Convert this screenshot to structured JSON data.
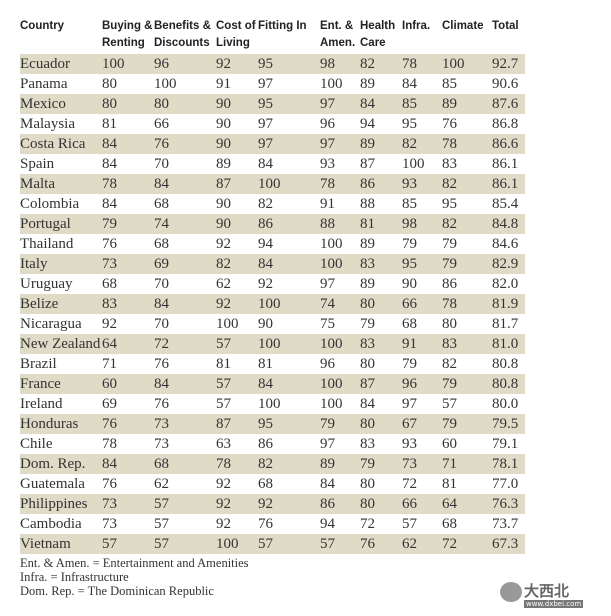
{
  "headers": [
    "Country",
    "Buying &\nRenting",
    "Benefits &\nDiscounts",
    "Cost of\nLiving",
    "Fitting In",
    "Ent. &\nAmen.",
    "Health\nCare",
    "Infra.",
    "Climate",
    "Total"
  ],
  "rows": [
    [
      "Ecuador",
      "100",
      "96",
      "92",
      "95",
      "98",
      "82",
      "78",
      "100",
      "92.7"
    ],
    [
      "Panama",
      "80",
      "100",
      "91",
      "97",
      "100",
      "89",
      "84",
      "85",
      "90.6"
    ],
    [
      "Mexico",
      "80",
      "80",
      "90",
      "95",
      "97",
      "84",
      "85",
      "89",
      "87.6"
    ],
    [
      "Malaysia",
      "81",
      "66",
      "90",
      "97",
      "96",
      "94",
      "95",
      "76",
      "86.8"
    ],
    [
      "Costa Rica",
      "84",
      "76",
      "90",
      "97",
      "97",
      "89",
      "82",
      "78",
      "86.6"
    ],
    [
      "Spain",
      "84",
      "70",
      "89",
      "84",
      "93",
      "87",
      "100",
      "83",
      "86.1"
    ],
    [
      "Malta",
      "78",
      "84",
      "87",
      "100",
      "78",
      "86",
      "93",
      "82",
      "86.1"
    ],
    [
      "Colombia",
      "84",
      "68",
      "90",
      "82",
      "91",
      "88",
      "85",
      "95",
      "85.4"
    ],
    [
      "Portugal",
      "79",
      "74",
      "90",
      "86",
      "88",
      "81",
      "98",
      "82",
      "84.8"
    ],
    [
      "Thailand",
      "76",
      "68",
      "92",
      "94",
      "100",
      "89",
      "79",
      "79",
      "84.6"
    ],
    [
      "Italy",
      "73",
      "69",
      "82",
      "84",
      "100",
      "83",
      "95",
      "79",
      "82.9"
    ],
    [
      "Uruguay",
      "68",
      "70",
      "62",
      "92",
      "97",
      "89",
      "90",
      "86",
      "82.0"
    ],
    [
      "Belize",
      "83",
      "84",
      "92",
      "100",
      "74",
      "80",
      "66",
      "78",
      "81.9"
    ],
    [
      "Nicaragua",
      "92",
      "70",
      "100",
      "90",
      "75",
      "79",
      "68",
      "80",
      "81.7"
    ],
    [
      "New Zealand",
      "64",
      "72",
      "57",
      "100",
      "100",
      "83",
      "91",
      "83",
      "81.0"
    ],
    [
      "Brazil",
      "71",
      "76",
      "81",
      "81",
      "96",
      "80",
      "79",
      "82",
      "80.8"
    ],
    [
      "France",
      "60",
      "84",
      "57",
      "84",
      "100",
      "87",
      "96",
      "79",
      "80.8"
    ],
    [
      "Ireland",
      "69",
      "76",
      "57",
      "100",
      "100",
      "84",
      "97",
      "57",
      "80.0"
    ],
    [
      "Honduras",
      "76",
      "73",
      "87",
      "95",
      "79",
      "80",
      "67",
      "79",
      "79.5"
    ],
    [
      "Chile",
      "78",
      "73",
      "63",
      "86",
      "97",
      "83",
      "93",
      "60",
      "79.1"
    ],
    [
      "Dom. Rep.",
      "84",
      "68",
      "78",
      "82",
      "89",
      "79",
      "73",
      "71",
      "78.1"
    ],
    [
      "Guatemala",
      "76",
      "62",
      "92",
      "68",
      "84",
      "80",
      "72",
      "81",
      "77.0"
    ],
    [
      "Philippines",
      "73",
      "57",
      "92",
      "92",
      "86",
      "80",
      "66",
      "64",
      "76.3"
    ],
    [
      "Cambodia",
      "73",
      "57",
      "92",
      "76",
      "94",
      "72",
      "57",
      "68",
      "73.7"
    ],
    [
      "Vietnam",
      "57",
      "57",
      "100",
      "57",
      "57",
      "76",
      "62",
      "72",
      "67.3"
    ]
  ],
  "notes": [
    "Ent. & Amen. = Entertainment and Amenities",
    "Infra. = Infrastructure",
    "Dom. Rep. = The Dominican Republic"
  ],
  "watermark": {
    "text": "大西北",
    "url": "www.dxbei.com"
  },
  "colors": {
    "band": "#e0dbc7",
    "text": "#333333"
  }
}
